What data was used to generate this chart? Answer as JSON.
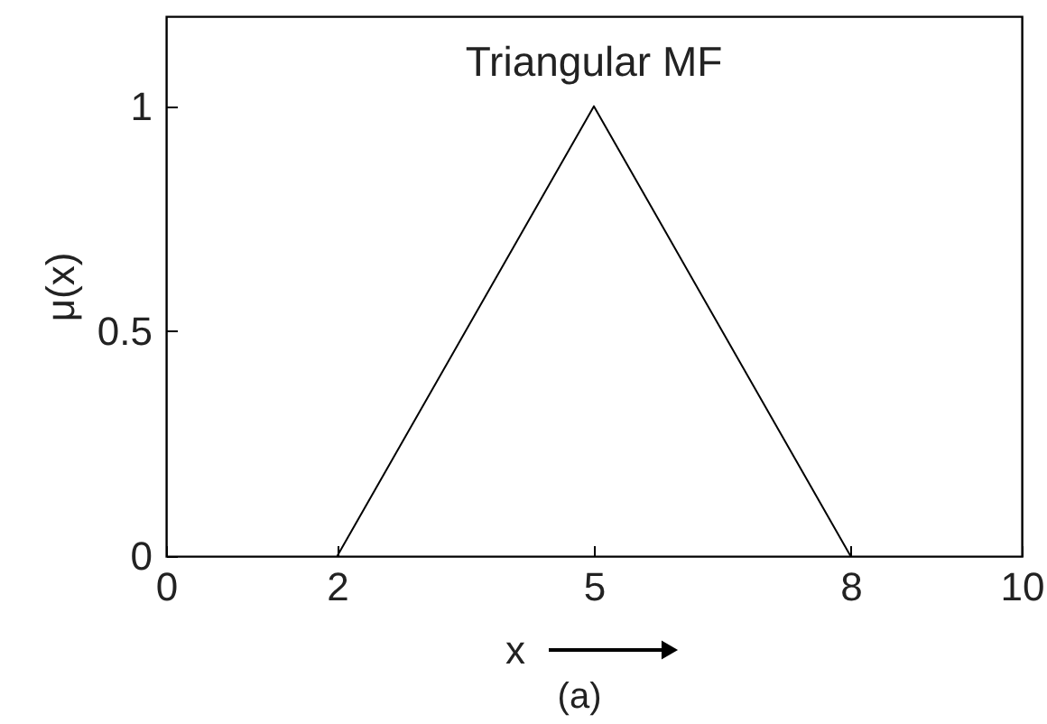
{
  "chart_data": {
    "type": "line",
    "title": "Triangular MF",
    "xlabel": "x",
    "ylabel": "μ(x)",
    "annotations": [
      "(a)"
    ],
    "x": [
      2,
      5,
      8
    ],
    "series": [
      {
        "color": "#000000",
        "values": [
          0,
          1,
          0
        ]
      }
    ],
    "xlim": [
      0,
      10
    ],
    "ylim": [
      0,
      1.2
    ],
    "xticks": [
      0,
      2,
      5,
      8,
      10
    ],
    "yticks": [
      0,
      0.5,
      1
    ],
    "line_style": "solid"
  }
}
